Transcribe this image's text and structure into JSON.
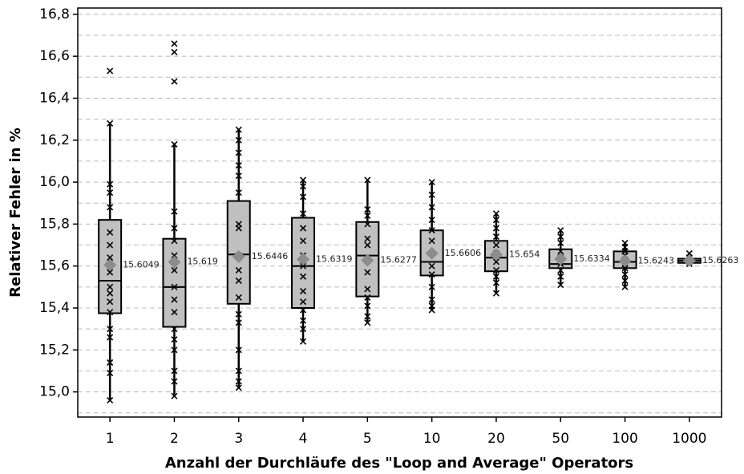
{
  "chart_data": {
    "type": "box",
    "y_label": "Relativer Fehler in %",
    "x_label": "Anzahl der Durchläufe des \"Loop and Average\" Operators",
    "categories": [
      "1",
      "2",
      "3",
      "4",
      "5",
      "10",
      "20",
      "50",
      "100",
      "1000"
    ],
    "ylim": [
      14.88,
      16.83
    ],
    "yticks": [
      {
        "value": 15.0,
        "label": "15,0"
      },
      {
        "value": 15.2,
        "label": "15,2"
      },
      {
        "value": 15.4,
        "label": "15,4"
      },
      {
        "value": 15.6,
        "label": "15,6"
      },
      {
        "value": 15.8,
        "label": "15,8"
      },
      {
        "value": 16.0,
        "label": "16,0"
      },
      {
        "value": 16.2,
        "label": "16,2"
      },
      {
        "value": 16.4,
        "label": "16,4"
      },
      {
        "value": 16.6,
        "label": "16,6"
      },
      {
        "value": 16.8,
        "label": "16,8"
      }
    ],
    "minor_yticks": [
      14.9,
      15.1,
      15.3,
      15.5,
      15.7,
      15.9,
      16.1,
      16.3,
      16.5,
      16.7
    ],
    "grid": true,
    "box_color": "#c0c0c0",
    "mean_color": "#8c8c8c",
    "boxes": [
      {
        "min": 14.96,
        "q1": 15.375,
        "median": 15.53,
        "q3": 15.82,
        "max": 16.28,
        "mean": 15.6049,
        "points": [
          16.53,
          16.28,
          15.99,
          15.95,
          15.88,
          15.76,
          15.7,
          15.64,
          15.57,
          15.5,
          15.47,
          15.43,
          15.38,
          15.3,
          15.26,
          15.14,
          15.09,
          14.96
        ]
      },
      {
        "min": 14.98,
        "q1": 15.31,
        "median": 15.5,
        "q3": 15.73,
        "max": 16.18,
        "mean": 15.619,
        "points": [
          16.66,
          16.62,
          16.48,
          16.18,
          15.86,
          15.78,
          15.72,
          15.65,
          15.58,
          15.5,
          15.44,
          15.38,
          15.3,
          15.25,
          15.2,
          15.1,
          15.05,
          14.98
        ]
      },
      {
        "min": 15.02,
        "q1": 15.42,
        "median": 15.655,
        "q3": 15.91,
        "max": 16.25,
        "mean": 15.6446,
        "points": [
          16.25,
          16.2,
          16.14,
          16.08,
          16.03,
          15.95,
          15.8,
          15.78,
          15.65,
          15.58,
          15.53,
          15.45,
          15.37,
          15.33,
          15.2,
          15.1,
          15.05,
          15.02
        ]
      },
      {
        "min": 15.24,
        "q1": 15.4,
        "median": 15.6,
        "q3": 15.83,
        "max": 16.01,
        "mean": 15.6319,
        "points": [
          16.01,
          15.98,
          15.93,
          15.85,
          15.78,
          15.72,
          15.65,
          15.6,
          15.55,
          15.48,
          15.43,
          15.39,
          15.34,
          15.3,
          15.24
        ]
      },
      {
        "min": 15.33,
        "q1": 15.455,
        "median": 15.65,
        "q3": 15.81,
        "max": 16.01,
        "mean": 15.6277,
        "points": [
          16.01,
          15.87,
          15.84,
          15.8,
          15.73,
          15.7,
          15.63,
          15.57,
          15.49,
          15.45,
          15.41,
          15.36,
          15.33
        ]
      },
      {
        "min": 15.39,
        "q1": 15.555,
        "median": 15.62,
        "q3": 15.77,
        "max": 16.0,
        "mean": 15.6606,
        "points": [
          16.0,
          15.94,
          15.88,
          15.82,
          15.77,
          15.72,
          15.66,
          15.6,
          15.56,
          15.5,
          15.44,
          15.41,
          15.39
        ]
      },
      {
        "min": 15.47,
        "q1": 15.575,
        "median": 15.64,
        "q3": 15.72,
        "max": 15.85,
        "mean": 15.654,
        "points": [
          15.85,
          15.82,
          15.78,
          15.74,
          15.7,
          15.66,
          15.62,
          15.58,
          15.55,
          15.52,
          15.47
        ]
      },
      {
        "min": 15.51,
        "q1": 15.59,
        "median": 15.61,
        "q3": 15.68,
        "max": 15.77,
        "mean": 15.6334,
        "points": [
          15.77,
          15.74,
          15.71,
          15.67,
          15.64,
          15.61,
          15.58,
          15.55,
          15.51
        ]
      },
      {
        "min": 15.5,
        "q1": 15.59,
        "median": 15.62,
        "q3": 15.67,
        "max": 15.71,
        "mean": 15.6243,
        "points": [
          15.71,
          15.69,
          15.67,
          15.65,
          15.63,
          15.61,
          15.59,
          15.56,
          15.53,
          15.5
        ]
      },
      {
        "min": 15.61,
        "q1": 15.615,
        "median": 15.625,
        "q3": 15.635,
        "max": 15.66,
        "mean": 15.6263,
        "points": [
          15.66,
          15.64,
          15.63,
          15.62,
          15.61
        ]
      }
    ]
  }
}
